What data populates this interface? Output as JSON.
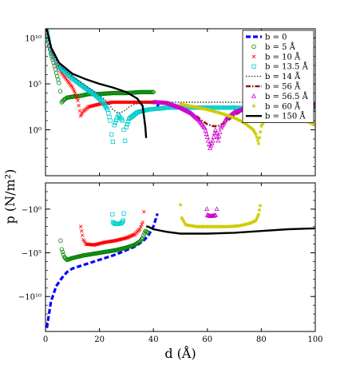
{
  "chart_data": {
    "type": "scatter",
    "xlabel": "d (Å)",
    "ylabel": "p (N/m²)",
    "x_ticks": [
      "0",
      "20",
      "40",
      "60",
      "80",
      "100"
    ],
    "xlim": [
      0,
      100
    ],
    "grid": false,
    "legend_position": "top-right",
    "panels": [
      {
        "id": "top",
        "yscale": "log",
        "ylim_log10": [
          -5,
          11
        ],
        "y_ticks": [
          {
            "value": 10,
            "label": "10¹⁰"
          },
          {
            "value": 5,
            "label": "10⁵"
          },
          {
            "value": 0,
            "label": "10⁰"
          }
        ]
      },
      {
        "id": "bottom",
        "yscale": "neglog",
        "ylim_log10": [
          -3,
          14
        ],
        "y_ticks": [
          {
            "value": 0,
            "label": "−10⁰"
          },
          {
            "value": 5,
            "label": "−10⁵"
          },
          {
            "value": 10,
            "label": "−10¹⁰"
          }
        ]
      }
    ],
    "series": [
      {
        "name": "b = 0",
        "color": "#0000ff",
        "style": "dash",
        "marker": "none",
        "top": [
          [
            41.5,
            2.5
          ],
          [
            42,
            3
          ]
        ],
        "bottom": [
          [
            0.5,
            13.6
          ],
          [
            2,
            10.6
          ],
          [
            4,
            8.8
          ],
          [
            6,
            7.9
          ],
          [
            8,
            7.2
          ],
          [
            10,
            6.8
          ],
          [
            14,
            6.4
          ],
          [
            18,
            6.0
          ],
          [
            22,
            5.6
          ],
          [
            26,
            5.2
          ],
          [
            30,
            4.7
          ],
          [
            33,
            4.3
          ],
          [
            36,
            3.7
          ],
          [
            38,
            3.1
          ],
          [
            40,
            2.0
          ],
          [
            41,
            1.0
          ],
          [
            41.5,
            0.5
          ]
        ]
      },
      {
        "name": "b = 5 Å",
        "color": "#008000",
        "style": "none",
        "marker": "circle",
        "top": [
          [
            0.3,
            10.9
          ],
          [
            1,
            9.6
          ],
          [
            2,
            8.3
          ],
          [
            3,
            7.3
          ],
          [
            4,
            6.2
          ],
          [
            5,
            5.1
          ],
          [
            5.5,
            4.2
          ],
          [
            6,
            3.0
          ],
          [
            7,
            3.3
          ],
          [
            8,
            3.5
          ],
          [
            10,
            3.6
          ],
          [
            13,
            3.7
          ],
          [
            16,
            3.9
          ],
          [
            20,
            3.9
          ],
          [
            25,
            4.0
          ],
          [
            30,
            4.0
          ],
          [
            35,
            4.1
          ],
          [
            40,
            4.1
          ]
        ],
        "bottom": [
          [
            5.6,
            3.6
          ],
          [
            6,
            4.6
          ],
          [
            7,
            5.5
          ],
          [
            8,
            5.8
          ],
          [
            10,
            5.6
          ],
          [
            14,
            5.3
          ],
          [
            18,
            5.1
          ],
          [
            22,
            4.9
          ],
          [
            26,
            4.7
          ],
          [
            30,
            4.4
          ],
          [
            33,
            4.1
          ],
          [
            35,
            3.7
          ],
          [
            36,
            3.3
          ],
          [
            37,
            2.5
          ],
          [
            38,
            2.7
          ]
        ]
      },
      {
        "name": "b = 10 Å",
        "color": "#ff0000",
        "style": "none",
        "marker": "x",
        "top": [
          [
            0.3,
            11.0
          ],
          [
            1,
            9.7
          ],
          [
            2,
            8.5
          ],
          [
            4,
            7.1
          ],
          [
            6,
            6.2
          ],
          [
            8,
            5.4
          ],
          [
            10,
            4.6
          ],
          [
            11,
            4.0
          ],
          [
            12,
            3.2
          ],
          [
            13,
            1.5
          ],
          [
            14,
            2.0
          ],
          [
            16,
            2.5
          ],
          [
            20,
            2.8
          ],
          [
            25,
            3.0
          ],
          [
            30,
            3.0
          ],
          [
            35,
            3.0
          ],
          [
            40,
            3.0
          ],
          [
            45,
            2.9
          ]
        ],
        "bottom": [
          [
            13.1,
            2.0
          ],
          [
            14,
            3.5
          ],
          [
            15,
            4.0
          ],
          [
            18,
            4.1
          ],
          [
            22,
            3.8
          ],
          [
            26,
            3.6
          ],
          [
            30,
            3.3
          ],
          [
            33,
            2.9
          ],
          [
            35,
            2.3
          ],
          [
            36,
            1.5
          ],
          [
            36.5,
            0.3
          ]
        ]
      },
      {
        "name": "b = 13.5 Å",
        "color": "#00cccc",
        "style": "none",
        "marker": "square",
        "top": [
          [
            0.3,
            11.1
          ],
          [
            2,
            8.6
          ],
          [
            5,
            6.9
          ],
          [
            10,
            5.6
          ],
          [
            14,
            4.7
          ],
          [
            18,
            3.9
          ],
          [
            21,
            3.1
          ],
          [
            23,
            2.2
          ],
          [
            24,
            1.0
          ],
          [
            24.5,
            -0.5
          ],
          [
            25,
            -1.3
          ],
          [
            25.5,
            0.5
          ],
          [
            27,
            1.6
          ],
          [
            28.5,
            1.0
          ],
          [
            29,
            0.0
          ],
          [
            29.5,
            -1.2
          ],
          [
            30,
            0.3
          ],
          [
            31,
            1.2
          ],
          [
            34,
            1.9
          ],
          [
            38,
            2.2
          ],
          [
            45,
            2.4
          ],
          [
            55,
            2.4
          ],
          [
            70,
            2.4
          ],
          [
            85,
            2.3
          ],
          [
            100,
            2.2
          ]
        ],
        "bottom": [
          [
            24.8,
            0.6
          ],
          [
            25,
            1.5
          ],
          [
            26,
            1.7
          ],
          [
            27,
            1.7
          ],
          [
            28.2,
            1.6
          ],
          [
            28.8,
            1.3
          ],
          [
            29,
            0.5
          ]
        ]
      },
      {
        "name": "b = 14 Å",
        "color": "#333333",
        "style": "dot",
        "marker": "none",
        "top": [
          [
            0.3,
            11.1
          ],
          [
            2,
            8.7
          ],
          [
            5,
            7.0
          ],
          [
            10,
            5.8
          ],
          [
            14,
            5.0
          ],
          [
            18,
            4.2
          ],
          [
            22,
            3.3
          ],
          [
            25,
            2.2
          ],
          [
            27,
            1.8
          ],
          [
            29,
            2.0
          ],
          [
            31,
            2.5
          ],
          [
            33,
            2.8
          ],
          [
            36,
            2.9
          ],
          [
            40,
            3.0
          ],
          [
            50,
            3.0
          ],
          [
            60,
            3.0
          ],
          [
            80,
            3.0
          ],
          [
            100,
            3.0
          ]
        ],
        "bottom": []
      },
      {
        "name": "b = 56 Å",
        "color": "#8b1a1a",
        "style": "dashdot",
        "marker": "none",
        "top": [
          [
            56,
            1.5
          ],
          [
            58,
            1.0
          ],
          [
            60,
            0.6
          ],
          [
            62,
            0.4
          ],
          [
            64,
            0.4
          ],
          [
            66,
            0.7
          ],
          [
            68,
            1.1
          ],
          [
            70,
            1.6
          ],
          [
            74,
            2.2
          ],
          [
            80,
            2.7
          ],
          [
            90,
            2.9
          ],
          [
            100,
            2.8
          ]
        ],
        "bottom": []
      },
      {
        "name": "b = 56.5 Å",
        "color": "#cc00cc",
        "style": "none",
        "marker": "triangle",
        "top": [
          [
            40,
            3.0
          ],
          [
            45,
            2.9
          ],
          [
            50,
            2.4
          ],
          [
            54,
            1.8
          ],
          [
            57,
            1.0
          ],
          [
            59,
            0.2
          ],
          [
            60,
            -0.8
          ],
          [
            61,
            -2.0
          ],
          [
            62,
            -1.2
          ],
          [
            63,
            0.0
          ],
          [
            64,
            -1.2
          ],
          [
            65,
            0.2
          ],
          [
            67,
            1.2
          ],
          [
            70,
            1.9
          ],
          [
            75,
            2.4
          ],
          [
            80,
            2.6
          ],
          [
            90,
            2.6
          ],
          [
            100,
            2.5
          ]
        ],
        "bottom": [
          [
            59.8,
            0.0
          ],
          [
            60,
            0.7
          ],
          [
            61,
            0.8
          ],
          [
            62,
            0.8
          ],
          [
            63,
            0.7
          ],
          [
            63.5,
            0.0
          ]
        ]
      },
      {
        "name": "b = 60 Å",
        "color": "#cccc00",
        "style": "none",
        "marker": "star",
        "top": [
          [
            50,
            2.8
          ],
          [
            55,
            2.5
          ],
          [
            60,
            2.2
          ],
          [
            65,
            1.8
          ],
          [
            70,
            1.3
          ],
          [
            74,
            0.7
          ],
          [
            77,
            0.0
          ],
          [
            78,
            -0.5
          ],
          [
            79,
            -1.5
          ],
          [
            80,
            0.4
          ],
          [
            82,
            1.5
          ],
          [
            85,
            1.7
          ],
          [
            90,
            1.6
          ],
          [
            95,
            1.2
          ],
          [
            100,
            0.5
          ]
        ],
        "bottom": [
          [
            50,
            -0.5
          ],
          [
            50.5,
            1.0
          ],
          [
            52,
            1.8
          ],
          [
            56,
            2.0
          ],
          [
            62,
            2.0
          ],
          [
            68,
            2.0
          ],
          [
            72,
            1.9
          ],
          [
            76,
            1.6
          ],
          [
            78,
            1.3
          ],
          [
            79,
            0.6
          ],
          [
            79.6,
            -0.4
          ]
        ]
      },
      {
        "name": "b = 150 Å",
        "color": "#000000",
        "style": "solid",
        "marker": "none",
        "top": [
          [
            0.3,
            11.2
          ],
          [
            2,
            9.0
          ],
          [
            5,
            7.3
          ],
          [
            10,
            6.1
          ],
          [
            15,
            5.5
          ],
          [
            20,
            5.0
          ],
          [
            25,
            4.6
          ],
          [
            30,
            4.1
          ],
          [
            34,
            3.4
          ],
          [
            36,
            2.6
          ],
          [
            37,
            0.3
          ],
          [
            37.3,
            -0.9
          ]
        ],
        "bottom": [
          [
            37.3,
            2.0
          ],
          [
            38,
            2.0
          ],
          [
            40,
            2.3
          ],
          [
            45,
            2.6
          ],
          [
            50,
            2.8
          ],
          [
            60,
            2.8
          ],
          [
            70,
            2.7
          ],
          [
            80,
            2.5
          ],
          [
            90,
            2.3
          ],
          [
            100,
            2.2
          ]
        ]
      }
    ]
  }
}
